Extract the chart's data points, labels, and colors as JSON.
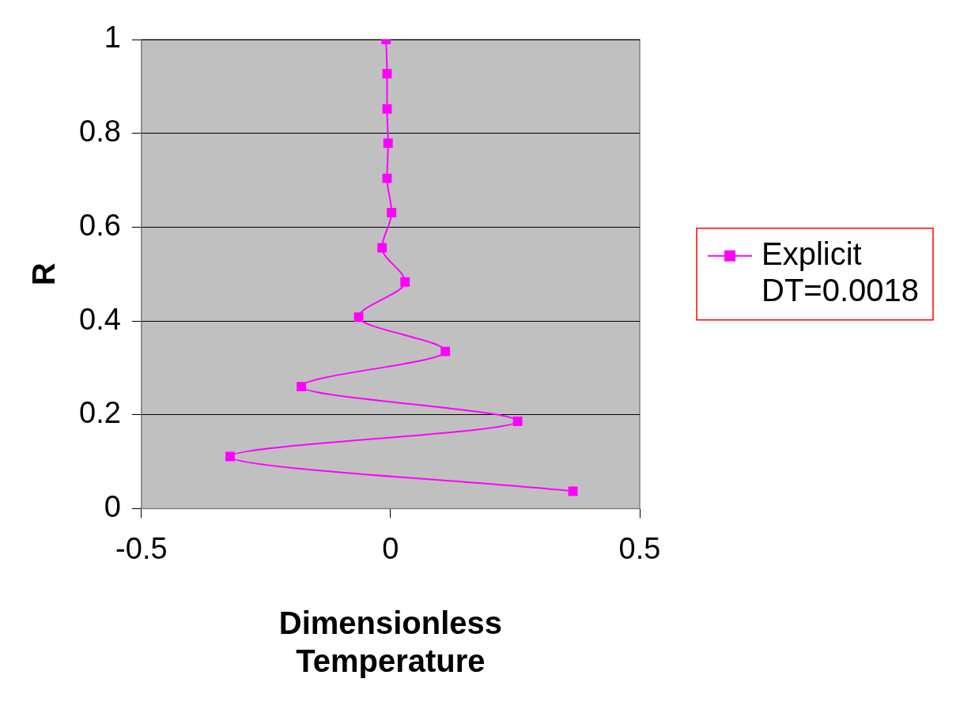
{
  "chart_data": {
    "type": "line",
    "xlabel": "Dimensionless Temperature",
    "ylabel": "R",
    "series": [
      {
        "name": "Explicit DT=0.0018",
        "color": "#ff00ff",
        "x": [
          0.366,
          -0.322,
          0.255,
          -0.179,
          0.11,
          -0.064,
          0.029,
          -0.017,
          0.002,
          -0.007,
          -0.005,
          -0.007,
          -0.007,
          -0.009
        ],
        "values": [
          0.037,
          0.111,
          0.186,
          0.26,
          0.335,
          0.408,
          0.483,
          0.556,
          0.631,
          0.704,
          0.779,
          0.852,
          0.927,
          1.0
        ]
      }
    ],
    "xlim": [
      -0.5,
      0.5
    ],
    "xticks": [
      -0.5,
      0,
      0.5
    ],
    "ylim": [
      0,
      1
    ],
    "yticks": [
      0,
      0.2,
      0.4,
      0.6,
      0.8,
      1
    ],
    "grid": "y",
    "legend": "right",
    "marker": "square",
    "line_style": "solid"
  }
}
